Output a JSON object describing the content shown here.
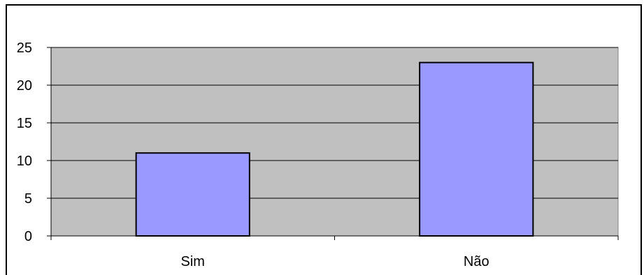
{
  "chart_data": {
    "type": "bar",
    "categories": [
      "Sim",
      "Não"
    ],
    "values": [
      11,
      23
    ],
    "title": "",
    "xlabel": "",
    "ylabel": "",
    "ylim": [
      0,
      25
    ],
    "yticks": [
      0,
      5,
      10,
      15,
      20,
      25
    ],
    "grid": true,
    "legend": "none",
    "colors": {
      "bar_fill": "#9999ff",
      "bar_stroke": "#000000",
      "plot_background": "#c0c0c0",
      "gridline": "#000000"
    }
  }
}
